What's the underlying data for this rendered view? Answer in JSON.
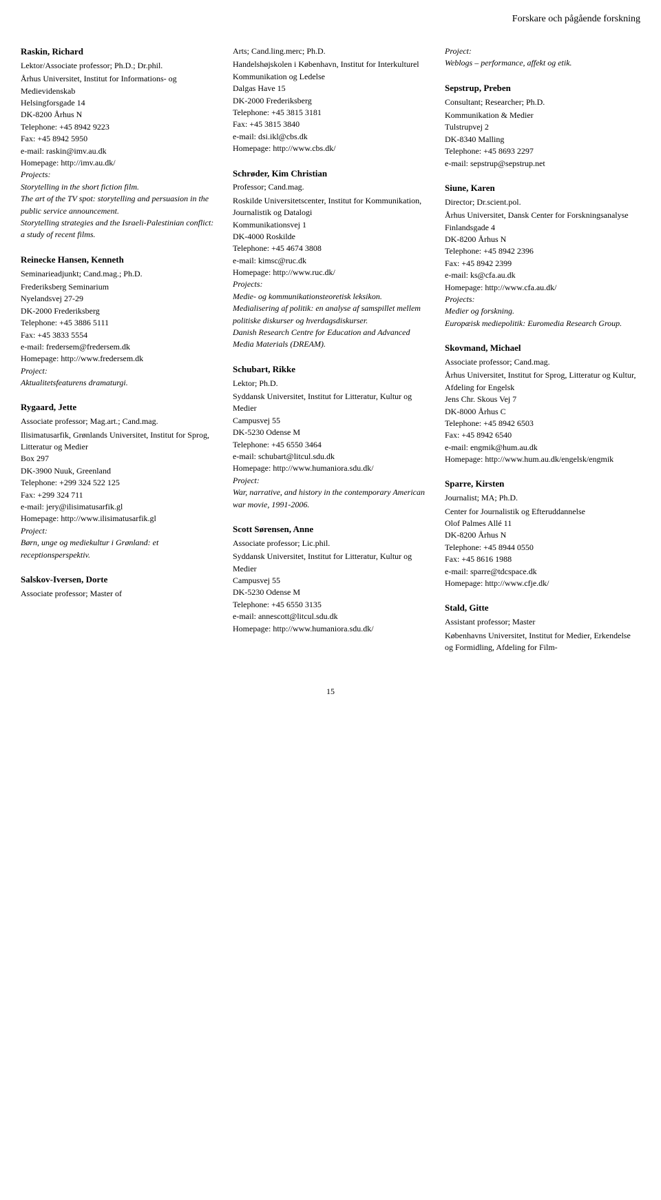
{
  "page_header": "Forskare och pågående forskning",
  "page_number": "15",
  "columns": [
    {
      "entries": [
        {
          "name": "Raskin, Richard",
          "title": "Lektor/Associate professor; Ph.D.; Dr.phil.",
          "affil": [
            "Århus Universitet, Institut for Informations- og Medievidenskab",
            "Helsingforsgade 14",
            "DK-8200 Århus N",
            "Telephone: +45 8942 9223",
            "Fax: +45 8942 5950",
            "e-mail: raskin@imv.au.dk",
            "Homepage: http://imv.au.dk/"
          ],
          "proj_label": "Projects:",
          "projects": [
            "Storytelling in the short fiction film.",
            "The art of the TV spot: storytelling and persuasion in the public service announcement.",
            "Storytelling strategies and the Israeli-Palestinian conflict: a study of recent films."
          ]
        },
        {
          "name": "Reinecke Hansen, Kenneth",
          "title": "Seminarieadjunkt; Cand.mag.; Ph.D.",
          "affil": [
            "Frederiksberg Seminarium",
            "Nyelandsvej 27-29",
            "DK-2000 Frederiksberg",
            "Telephone: +45 3886 5111",
            "Fax: +45 3833 5554",
            "e-mail: fredersem@fredersem.dk",
            "Homepage: http://www.fredersem.dk"
          ],
          "proj_label": "Project:",
          "projects": [
            "Aktualitetsfeaturens dramaturgi."
          ]
        },
        {
          "name": "Rygaard, Jette",
          "title": "Associate professor; Mag.art.; Cand.mag.",
          "affil": [
            "Ilisimatusarfik, Grønlands Universitet, Institut for Sprog, Litteratur og Medier",
            "Box 297",
            "DK-3900 Nuuk, Greenland",
            "Telephone: +299 324 522 125",
            "Fax: +299 324 711",
            "e-mail: jery@ilisimatusarfik.gl",
            "Homepage: http://www.ilisimatusarfik.gl"
          ],
          "proj_label": "Project:",
          "projects": [
            "Børn, unge og mediekultur i Grønland: et receptionsperspektiv."
          ]
        },
        {
          "name": "Salskov-Iversen, Dorte",
          "title": "Associate professor; Master of",
          "affil": [],
          "proj_label": "",
          "projects": []
        }
      ]
    },
    {
      "entries": [
        {
          "name": "",
          "title": "Arts; Cand.ling.merc; Ph.D.",
          "affil": [
            "Handelshøjskolen i København, Institut for Interkulturel Kommunikation og Ledelse",
            "Dalgas Have 15",
            "DK-2000 Frederiksberg",
            "Telephone: +45 3815 3181",
            "Fax: +45 3815 3840",
            "e-mail: dsi.ikl@cbs.dk",
            "Homepage: http://www.cbs.dk/"
          ],
          "proj_label": "",
          "projects": []
        },
        {
          "name": "Schrøder, Kim Christian",
          "title": "Professor; Cand.mag.",
          "affil": [
            "Roskilde Universitetscenter, Institut for Kommunikation, Journalistik og Datalogi",
            "Kommunikationsvej 1",
            "DK-4000 Roskilde",
            "Telephone: +45 4674 3808",
            "e-mail: kimsc@ruc.dk",
            "Homepage: http://www.ruc.dk/"
          ],
          "proj_label": "Projects:",
          "projects": [
            "Medie- og kommunikationsteoretisk leksikon.",
            "Medialisering af politik: en analyse af samspillet mellem politiske diskurser og hverdagsdiskurser.",
            "Danish Research Centre for Education and Advanced Media Materials (DREAM)."
          ]
        },
        {
          "name": "Schubart, Rikke",
          "title": "Lektor; Ph.D.",
          "affil": [
            "Syddansk Universitet, Institut for Litteratur, Kultur og Medier",
            "Campusvej 55",
            "DK-5230 Odense M",
            "Telephone: +45 6550 3464",
            "e-mail: schubart@litcul.sdu.dk",
            "Homepage: http://www.humaniora.sdu.dk/"
          ],
          "proj_label": "Project:",
          "projects": [
            "War, narrative, and history in the contemporary American war movie, 1991-2006."
          ]
        },
        {
          "name": "Scott Sørensen, Anne",
          "title": "Associate professor; Lic.phil.",
          "affil": [
            "Syddansk Universitet, Institut for Litteratur, Kultur og Medier",
            "Campusvej 55",
            "DK-5230 Odense M",
            "Telephone: +45 6550 3135",
            "e-mail: annescott@litcul.sdu.dk",
            "Homepage: http://www.humaniora.sdu.dk/"
          ],
          "proj_label": "",
          "projects": []
        }
      ]
    },
    {
      "entries": [
        {
          "name": "",
          "title": "",
          "affil": [],
          "proj_label": "Project:",
          "projects": [
            "Weblogs – performance, affekt og etik."
          ]
        },
        {
          "name": "Sepstrup, Preben",
          "title": "Consultant; Researcher; Ph.D.",
          "affil": [
            "Kommunikation & Medier",
            "Tulstrupvej 2",
            "DK-8340 Malling",
            "Telephone: +45 8693 2297",
            "e-mail: sepstrup@sepstrup.net"
          ],
          "proj_label": "",
          "projects": []
        },
        {
          "name": "Siune, Karen",
          "title": "Director; Dr.scient.pol.",
          "affil": [
            "Århus Universitet, Dansk Center for Forskningsanalyse",
            "Finlandsgade 4",
            "DK-8200 Århus N",
            "Telephone: +45 8942 2396",
            "Fax: +45 8942 2399",
            "e-mail: ks@cfa.au.dk",
            "Homepage: http://www.cfa.au.dk/"
          ],
          "proj_label": "Projects:",
          "projects": [
            "Medier og forskning.",
            "Europæisk mediepolitik: Euromedia Research Group."
          ]
        },
        {
          "name": "Skovmand, Michael",
          "title": "Associate professor; Cand.mag.",
          "affil": [
            "Århus Universitet, Institut for Sprog, Litteratur og Kultur, Afdeling for Engelsk",
            "Jens Chr. Skous Vej 7",
            "DK-8000 Århus C",
            "Telephone: +45 8942 6503",
            "Fax: +45 8942 6540",
            "e-mail: engmik@hum.au.dk",
            "Homepage: http://www.hum.au.dk/engelsk/engmik"
          ],
          "proj_label": "",
          "projects": []
        },
        {
          "name": "Sparre, Kirsten",
          "title": "Journalist; MA; Ph.D.",
          "affil": [
            "Center for Journalistik og Efteruddannelse",
            "Olof Palmes Allé 11",
            "DK-8200 Århus N",
            "Telephone: +45 8944 0550",
            "Fax: +45 8616 1988",
            "e-mail: sparre@tdcspace.dk",
            "Homepage: http://www.cfje.dk/"
          ],
          "proj_label": "",
          "projects": []
        },
        {
          "name": "Stald, Gitte",
          "title": "Assistant professor; Master",
          "affil": [
            "Københavns Universitet, Institut for Medier, Erkendelse og Formidling, Afdeling for Film-"
          ],
          "proj_label": "",
          "projects": []
        }
      ]
    }
  ]
}
